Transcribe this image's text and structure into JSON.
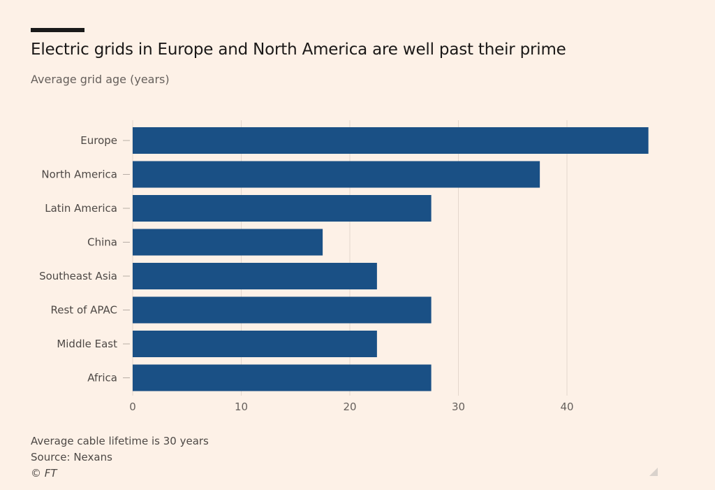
{
  "chart_data": {
    "type": "bar",
    "orientation": "horizontal",
    "title": "Electric grids in Europe and North America are well past their prime",
    "subtitle": "Average grid age (years)",
    "categories": [
      "Europe",
      "North America",
      "Latin America",
      "China",
      "Southeast Asia",
      "Rest of APAC",
      "Middle East",
      "Africa"
    ],
    "values": [
      47.5,
      37.5,
      27.5,
      17.5,
      22.5,
      27.5,
      22.5,
      27.5
    ],
    "xlim": [
      0,
      48
    ],
    "xticks": [
      "0",
      "10",
      "20",
      "30",
      "40"
    ],
    "grid": true,
    "bar_color": "#1a5085",
    "grid_color": "#e4d7cc"
  },
  "notes": {
    "footnote": "Average cable lifetime is 30 years",
    "source": "Source: Nexans",
    "copyright": "© FT"
  }
}
